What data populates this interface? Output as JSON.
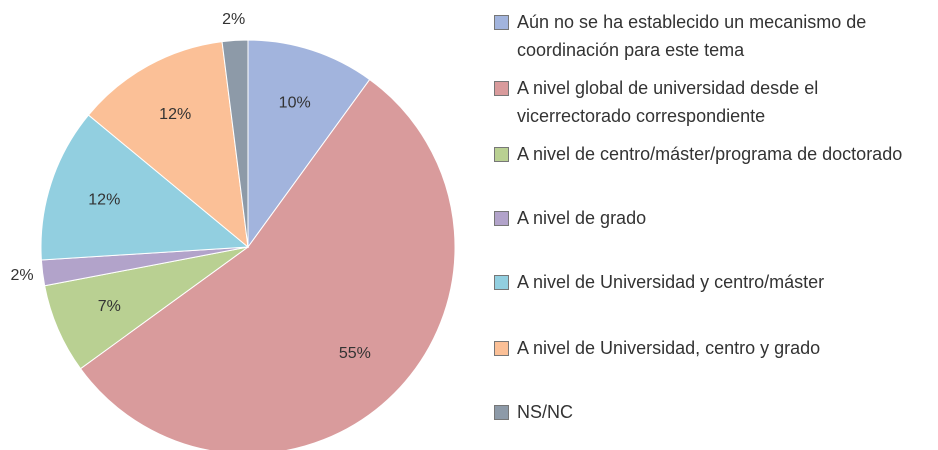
{
  "chart_data": {
    "type": "pie",
    "categories": [
      "Aún no se ha establecido un mecanismo de coordinación para este tema",
      "A nivel global de universidad desde el vicerrectorado correspondiente",
      "A nivel de centro/máster/programa de doctorado",
      "A nivel de grado",
      "A nivel de Universidad y centro/máster",
      "A nivel de Universidad, centro y grado",
      "NS/NC"
    ],
    "values": [
      10,
      55,
      7,
      2,
      12,
      12,
      2
    ],
    "value_labels": [
      "10%",
      "55%",
      "7%",
      "2%",
      "12%",
      "12%",
      "2%"
    ],
    "colors": [
      "#a2b4dd",
      "#d99b9c",
      "#b9d092",
      "#b2a3ca",
      "#92cfe0",
      "#fbc097",
      "#8d9aa8"
    ],
    "legend": "right"
  }
}
